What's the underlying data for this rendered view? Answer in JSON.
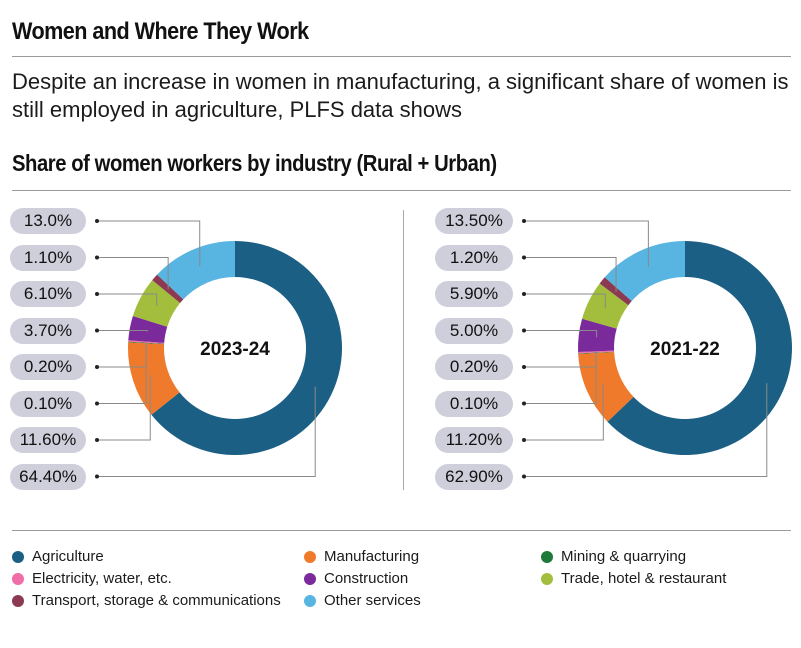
{
  "header": {
    "title": "Women and Where They Work",
    "subtitle": "Despite an increase in women in manufacturing, a significant share of women is still employed in agriculture, PLFS data shows"
  },
  "chart_data": [
    {
      "type": "pie",
      "variant": "donut",
      "title": "Share of women workers by industry (Rural + Urban)",
      "center_label": "2023-24",
      "categories": [
        "Agriculture",
        "Manufacturing",
        "Mining & quarrying",
        "Electricity, water, etc.",
        "Construction",
        "Trade, hotel & restaurant",
        "Transport, storage & communications",
        "Other services"
      ],
      "values": [
        64.4,
        11.6,
        0.1,
        0.2,
        3.7,
        6.1,
        1.1,
        13.0
      ],
      "labels": [
        "64.40%",
        "11.60%",
        "0.10%",
        "0.20%",
        "3.70%",
        "6.10%",
        "1.10%",
        "13.0%"
      ],
      "colors": [
        "#1b5f84",
        "#ef7a2b",
        "#1e7a3a",
        "#f06ea8",
        "#7b2a9c",
        "#a3be3c",
        "#8b3a52",
        "#58b4e0"
      ]
    },
    {
      "type": "pie",
      "variant": "donut",
      "center_label": "2021-22",
      "categories": [
        "Agriculture",
        "Manufacturing",
        "Mining & quarrying",
        "Electricity, water, etc.",
        "Construction",
        "Trade, hotel & restaurant",
        "Transport, storage & communications",
        "Other services"
      ],
      "values": [
        62.9,
        11.2,
        0.1,
        0.2,
        5.0,
        5.9,
        1.2,
        13.5
      ],
      "labels": [
        "62.90%",
        "11.20%",
        "0.10%",
        "0.20%",
        "5.00%",
        "5.90%",
        "1.20%",
        "13.50%"
      ],
      "colors": [
        "#1b5f84",
        "#ef7a2b",
        "#1e7a3a",
        "#f06ea8",
        "#7b2a9c",
        "#a3be3c",
        "#8b3a52",
        "#58b4e0"
      ]
    }
  ],
  "legend": [
    {
      "label": "Agriculture",
      "color": "#1b5f84"
    },
    {
      "label": "Manufacturing",
      "color": "#ef7a2b"
    },
    {
      "label": "Mining & quarrying",
      "color": "#1e7a3a"
    },
    {
      "label": "Electricity, water, etc.",
      "color": "#f06ea8"
    },
    {
      "label": "Construction",
      "color": "#7b2a9c"
    },
    {
      "label": "Trade, hotel & restaurant",
      "color": "#a3be3c"
    },
    {
      "label": "Transport, storage & communications",
      "color": "#8b3a52"
    },
    {
      "label": "Other services",
      "color": "#58b4e0"
    }
  ]
}
